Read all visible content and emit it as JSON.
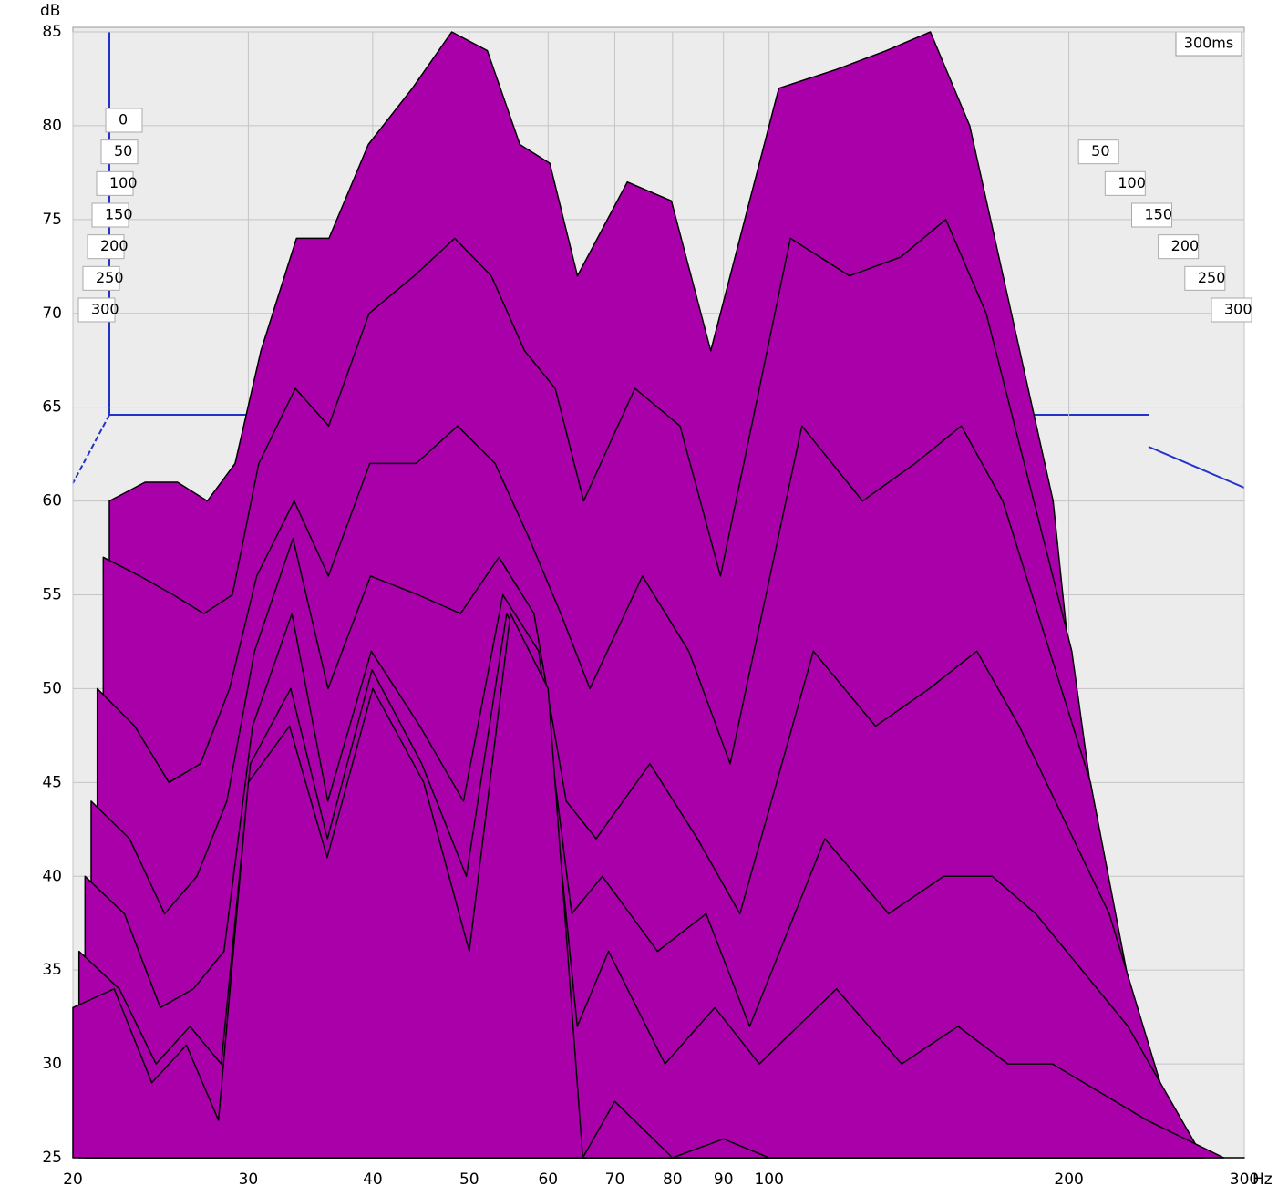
{
  "chart_data": {
    "type": "waterfall",
    "x_label": "Hz",
    "y_label": "dB",
    "z_label": "300ms",
    "x": [
      20,
      22,
      24,
      26,
      28,
      30,
      33,
      36,
      40,
      45,
      50,
      55,
      60,
      65,
      70,
      80,
      90,
      100,
      120,
      140,
      160,
      180,
      200,
      250,
      300
    ],
    "xlim": [
      20,
      300
    ],
    "xticks": [
      20,
      30,
      40,
      50,
      60,
      70,
      80,
      90,
      100,
      200,
      300
    ],
    "log_x": true,
    "ylim": [
      25,
      85
    ],
    "yticks": [
      25,
      30,
      35,
      40,
      45,
      50,
      55,
      60,
      65,
      70,
      75,
      80,
      85
    ],
    "zlim": [
      0,
      300
    ],
    "zticks": [
      0,
      50,
      100,
      150,
      200,
      250,
      300
    ],
    "z": [
      0,
      50,
      100,
      150,
      200,
      250,
      300
    ],
    "color": "#aa00aa",
    "grid": true,
    "series": [
      {
        "values": [
          60,
          61,
          61,
          60,
          62,
          68,
          74,
          74,
          79,
          82,
          85,
          84,
          79,
          78,
          72,
          77,
          76,
          68,
          82,
          83,
          84,
          85,
          80,
          60,
          25
        ]
      },
      {
        "values": [
          57,
          56,
          55,
          54,
          55,
          62,
          66,
          64,
          70,
          72,
          74,
          72,
          68,
          66,
          60,
          66,
          64,
          56,
          74,
          72,
          73,
          75,
          70,
          52,
          25
        ]
      },
      {
        "values": [
          50,
          48,
          45,
          46,
          50,
          56,
          60,
          56,
          62,
          62,
          64,
          62,
          58,
          54,
          50,
          56,
          52,
          46,
          64,
          60,
          62,
          64,
          60,
          45,
          25
        ]
      },
      {
        "values": [
          44,
          42,
          38,
          40,
          44,
          52,
          58,
          50,
          56,
          55,
          54,
          57,
          54,
          44,
          42,
          46,
          42,
          38,
          52,
          48,
          50,
          52,
          48,
          38,
          25
        ]
      },
      {
        "values": [
          40,
          38,
          33,
          34,
          36,
          48,
          54,
          44,
          52,
          48,
          44,
          55,
          52,
          38,
          40,
          36,
          38,
          32,
          42,
          38,
          40,
          40,
          38,
          32,
          25
        ]
      },
      {
        "values": [
          36,
          34,
          30,
          32,
          30,
          46,
          50,
          42,
          51,
          46,
          40,
          54,
          50,
          32,
          36,
          30,
          33,
          30,
          34,
          30,
          32,
          30,
          30,
          27,
          25
        ]
      },
      {
        "values": [
          33,
          34,
          29,
          31,
          27,
          45,
          48,
          41,
          50,
          45,
          36,
          54,
          50,
          25,
          28,
          25,
          26,
          25,
          25,
          25,
          25,
          25,
          25,
          25,
          25
        ]
      }
    ]
  }
}
